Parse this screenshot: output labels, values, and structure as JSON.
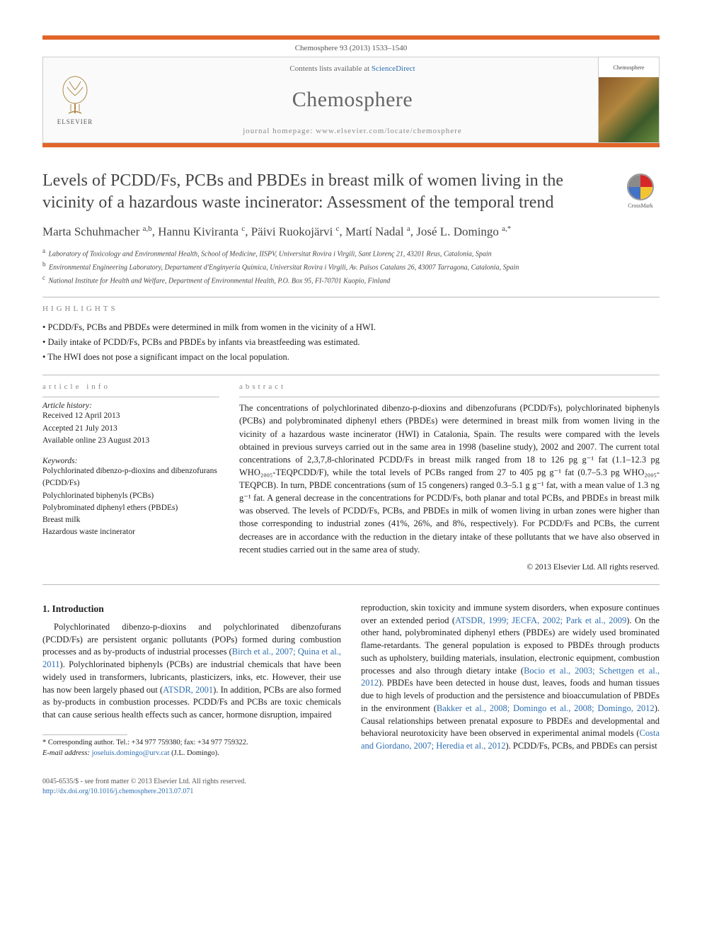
{
  "header": {
    "citation": "Chemosphere 93 (2013) 1533–1540",
    "contents_prefix": "Contents lists available at ",
    "contents_link": "ScienceDirect",
    "journal_name": "Chemosphere",
    "homepage_prefix": "journal homepage: ",
    "homepage_url": "www.elsevier.com/locate/chemosphere",
    "publisher_label": "ELSEVIER",
    "cover_label": "Chemosphere"
  },
  "crossmark_label": "CrossMark",
  "title": "Levels of PCDD/Fs, PCBs and PBDEs in breast milk of women living in the vicinity of a hazardous waste incinerator: Assessment of the temporal trend",
  "authors_html": "Marta Schuhmacher|a,b|, Hannu Kiviranta|c|, Päivi Ruokojärvi|c|, Martí Nadal|a|, José L. Domingo|a,*|",
  "affiliations": [
    {
      "sup": "a",
      "text": "Laboratory of Toxicology and Environmental Health, School of Medicine, IISPV, Universitat Rovira i Virgili, Sant Llorenç 21, 43201 Reus, Catalonia, Spain"
    },
    {
      "sup": "b",
      "text": "Environmental Engineering Laboratory, Departament d'Enginyeria Química, Universitat Rovira i Virgili, Av. Països Catalans 26, 43007 Tarragona, Catalonia, Spain"
    },
    {
      "sup": "c",
      "text": "National Institute for Health and Welfare, Department of Environmental Health, P.O. Box 95, FI-70701 Kuopio, Finland"
    }
  ],
  "highlights_label": "highlights",
  "highlights": [
    "PCDD/Fs, PCBs and PBDEs were determined in milk from women in the vicinity of a HWI.",
    "Daily intake of PCDD/Fs, PCBs and PBDEs by infants via breastfeeding was estimated.",
    "The HWI does not pose a significant impact on the local population."
  ],
  "article_info": {
    "heading": "article info",
    "history_label": "Article history:",
    "history": [
      "Received 12 April 2013",
      "Accepted 21 July 2013",
      "Available online 23 August 2013"
    ],
    "keywords_label": "Keywords:",
    "keywords": [
      "Polychlorinated dibenzo-p-dioxins and dibenzofurans (PCDD/Fs)",
      "Polychlorinated biphenyls (PCBs)",
      "Polybrominated diphenyl ethers (PBDEs)",
      "Breast milk",
      "Hazardous waste incinerator"
    ]
  },
  "abstract": {
    "heading": "abstract",
    "text": "The concentrations of polychlorinated dibenzo-p-dioxins and dibenzofurans (PCDD/Fs), polychlorinated biphenyls (PCBs) and polybrominated diphenyl ethers (PBDEs) were determined in breast milk from women living in the vicinity of a hazardous waste incinerator (HWI) in Catalonia, Spain. The results were compared with the levels obtained in previous surveys carried out in the same area in 1998 (baseline study), 2002 and 2007. The current total concentrations of 2,3,7,8-chlorinated PCDD/Fs in breast milk ranged from 18 to 126 pg g⁻¹ fat (1.1–12.3 pg WHO₂₀₀₅-TEQPCDD/F), while the total levels of PCBs ranged from 27 to 405 pg g⁻¹ fat (0.7–5.3 pg WHO₂₀₀₅-TEQPCB). In turn, PBDE concentrations (sum of 15 congeners) ranged 0.3–5.1 g g⁻¹ fat, with a mean value of 1.3 ng g⁻¹ fat. A general decrease in the concentrations for PCDD/Fs, both planar and total PCBs, and PBDEs in breast milk was observed. The levels of PCDD/Fs, PCBs, and PBDEs in milk of women living in urban zones were higher than those corresponding to industrial zones (41%, 26%, and 8%, respectively). For PCDD/Fs and PCBs, the current decreases are in accordance with the reduction in the dietary intake of these pollutants that we have also observed in recent studies carried out in the same area of study.",
    "copyright": "© 2013 Elsevier Ltd. All rights reserved."
  },
  "intro_heading": "1. Introduction",
  "intro_col1": "Polychlorinated dibenzo-p-dioxins and polychlorinated dibenzofurans (PCDD/Fs) are persistent organic pollutants (POPs) formed during combustion processes and as by-products of industrial processes (|Birch et al., 2007; Quina et al., 2011|). Polychlorinated biphenyls (PCBs) are industrial chemicals that have been widely used in transformers, lubricants, plasticizers, inks, etc. However, their use has now been largely phased out (|ATSDR, 2001|). In addition, PCBs are also formed as by-products in combustion processes. PCDD/Fs and PCBs are toxic chemicals that can cause serious health effects such as cancer, hormone disruption, impaired",
  "intro_col2": "reproduction, skin toxicity and immune system disorders, when exposure continues over an extended period (|ATSDR, 1999; JECFA, 2002; Park et al., 2009|). On the other hand, polybrominated diphenyl ethers (PBDEs) are widely used brominated flame-retardants. The general population is exposed to PBDEs through products such as upholstery, building materials, insulation, electronic equipment, combustion processes and also through dietary intake (|Bocio et al., 2003; Schettgen et al., 2012|). PBDEs have been detected in house dust, leaves, foods and human tissues due to high levels of production and the persistence and bioaccumulation of PBDEs in the environment (|Bakker et al., 2008; Domingo et al., 2008; Domingo, 2012|). Causal relationships between prenatal exposure to PBDEs and developmental and behavioral neurotoxicity have been observed in experimental animal models (|Costa and Giordano, 2007; Heredia et al., 2012|). PCDD/Fs, PCBs, and PBDEs can persist",
  "footnote": {
    "corr": "* Corresponding author. Tel.: +34 977 759380; fax: +34 977 759322.",
    "email_label": "E-mail address:",
    "email": "joseluis.domingo@urv.cat",
    "email_who": "(J.L. Domingo)."
  },
  "bottom": {
    "line1": "0045-6535/$ - see front matter © 2013 Elsevier Ltd. All rights reserved.",
    "doi": "http://dx.doi.org/10.1016/j.chemosphere.2013.07.071"
  },
  "colors": {
    "accent": "#e16529",
    "link": "#2f6fb0",
    "muted": "#888"
  }
}
